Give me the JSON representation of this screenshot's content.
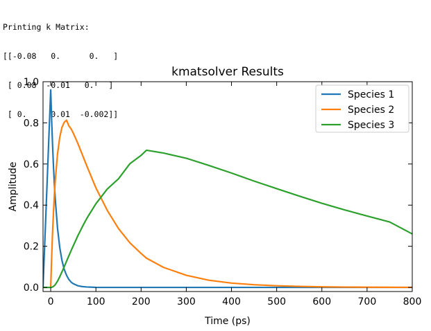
{
  "console": {
    "header": "Printing k Matrix:",
    "lines": [
      "[[-0.08   0.      0.   ]",
      " [ 0.08  -0.01   0.   ]",
      " [ 0.     0.01  -0.002]]"
    ]
  },
  "chart_data": {
    "type": "line",
    "title": "kmatsolver Results",
    "xlabel": "Time (ps)",
    "ylabel": "Amplitude",
    "xlim": [
      -17,
      800
    ],
    "ylim": [
      -0.02,
      1.0
    ],
    "xticks": [
      0,
      100,
      200,
      300,
      400,
      500,
      600,
      700,
      800
    ],
    "yticks": [
      0.0,
      0.2,
      0.4,
      0.6,
      0.8,
      1.0
    ],
    "xtick_labels": [
      "0",
      "100",
      "200",
      "300",
      "400",
      "500",
      "600",
      "700",
      "800"
    ],
    "ytick_labels": [
      "0.0",
      "0.2",
      "0.4",
      "0.6",
      "0.8",
      "1.0"
    ],
    "legend_position": "top-right",
    "x": [
      -17,
      0,
      2,
      4,
      6,
      8,
      10,
      15,
      20,
      25,
      30,
      35,
      40,
      45,
      50,
      60,
      70,
      80,
      100,
      125,
      150,
      175,
      200,
      212,
      250,
      300,
      350,
      400,
      450,
      500,
      550,
      600,
      650,
      700,
      750,
      800
    ],
    "series": [
      {
        "name": "Species 1",
        "color": "#1f77b4",
        "values": [
          0,
          0.96,
          0.818,
          0.697,
          0.594,
          0.506,
          0.431,
          0.289,
          0.194,
          0.13,
          0.087,
          0.059,
          0.039,
          0.026,
          0.018,
          0.008,
          0.004,
          0.002,
          0.0003,
          4e-05,
          0.0,
          0.0,
          0.0,
          0.0,
          0.0,
          0.0,
          0.0,
          0.0,
          0.0,
          0.0,
          0.0,
          0.0,
          0.0,
          0.0,
          0.0,
          0.0
        ]
      },
      {
        "name": "Species 2",
        "color": "#ff7f0e",
        "values": [
          0,
          0.0,
          0.141,
          0.261,
          0.361,
          0.446,
          0.517,
          0.648,
          0.73,
          0.779,
          0.803,
          0.813,
          0.786,
          0.771,
          0.75,
          0.7,
          0.645,
          0.59,
          0.484,
          0.375,
          0.286,
          0.217,
          0.165,
          0.142,
          0.097,
          0.059,
          0.035,
          0.021,
          0.013,
          0.008,
          0.005,
          0.0028,
          0.0017,
          0.001,
          0.0006,
          0.0004
        ]
      },
      {
        "name": "Species 3",
        "color": "#2ca02c",
        "values": [
          0,
          0.0,
          0.0006,
          0.002,
          0.005,
          0.009,
          0.013,
          0.03,
          0.052,
          0.076,
          0.101,
          0.127,
          0.153,
          0.178,
          0.203,
          0.251,
          0.295,
          0.336,
          0.407,
          0.478,
          0.528,
          0.601,
          0.642,
          0.667,
          0.653,
          0.628,
          0.593,
          0.556,
          0.517,
          0.48,
          0.444,
          0.409,
          0.377,
          0.347,
          0.318,
          0.26
        ]
      }
    ]
  }
}
